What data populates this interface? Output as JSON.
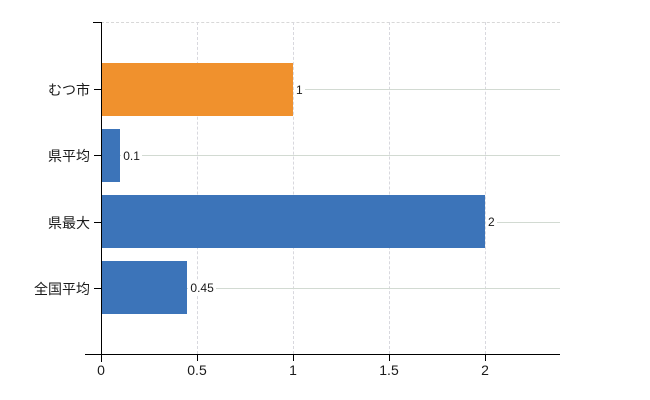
{
  "chart_data": {
    "type": "bar",
    "orientation": "horizontal",
    "title": "",
    "categories": [
      "むつ市",
      "県平均",
      "県最大",
      "全国平均"
    ],
    "series": [
      {
        "name": "",
        "values": [
          1,
          0.1,
          2,
          0.45
        ]
      }
    ],
    "value_labels": [
      "1",
      "0.1",
      "2",
      "0.45"
    ],
    "bar_colors": [
      "#f0912d",
      "#3c74b9",
      "#3c74b9",
      "#3c74b9"
    ],
    "x_ticks": [
      0,
      0.5,
      1,
      1.5,
      2
    ],
    "x_tick_labels": [
      "0",
      "0.5",
      "1",
      "1.5",
      "2"
    ],
    "xlim": [
      0,
      2.39
    ],
    "ylabel": "",
    "xlabel": "",
    "grid": true,
    "legend": false
  },
  "colors": {
    "bar_orange": "#f0912d",
    "bar_blue": "#3c74b9",
    "axis": "#000000",
    "gridline_horizontal": "#d2dad2",
    "gridline_vertical": "#d8d8de",
    "top_border": "#d8d8d8",
    "text": "#1a1a1a",
    "background": "#ffffff"
  }
}
